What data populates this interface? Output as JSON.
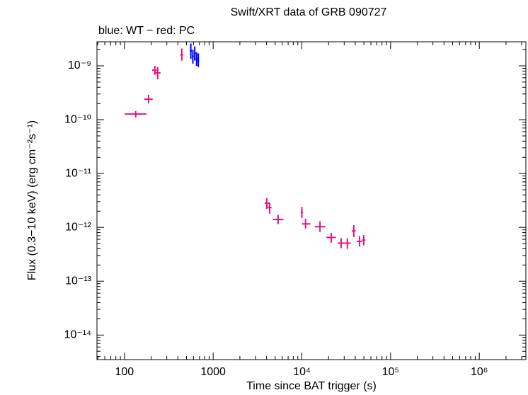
{
  "chart_data": {
    "type": "errorbar",
    "title": "Swift/XRT data of GRB 090727",
    "subtitle": "blue: WT − red: PC",
    "x_label": "Time since BAT trigger (s)",
    "y_label": "Flux (0.3−10 keV) (erg cm⁻²s⁻¹)",
    "x_scale": "log",
    "y_scale": "log",
    "xlim": [
      49,
      3350000
    ],
    "ylim": [
      3.5e-15,
      2.8e-09
    ],
    "xticks": [
      100,
      1000,
      {
        "value": 10000,
        "label": "10⁴"
      },
      {
        "value": 100000,
        "label": "10⁵"
      },
      {
        "value": 1000000,
        "label": "10⁶"
      }
    ],
    "yticks": [
      {
        "value": 1e-14,
        "label": "10⁻¹⁴"
      },
      {
        "value": 1e-13,
        "label": "10⁻¹³"
      },
      {
        "value": 1e-12,
        "label": "10⁻¹²"
      },
      {
        "value": 1e-11,
        "label": "10⁻¹¹"
      },
      {
        "value": 1e-10,
        "label": "10⁻¹⁰"
      },
      {
        "value": 1e-09,
        "label": "10⁻⁹"
      }
    ],
    "series": [
      {
        "color": "#e8127f",
        "x": [
          134,
          187,
          220,
          237,
          443,
          4020,
          4330,
          5400,
          10000,
          11000,
          16000,
          21400,
          27700,
          32600,
          38500,
          44700,
          49800
        ],
        "x_low": [
          101,
          167,
          205,
          222,
          425,
          3800,
          4100,
          4700,
          9700,
          10000,
          14000,
          18900,
          25300,
          30000,
          36500,
          41500,
          47500
        ],
        "x_high": [
          177,
          208,
          232,
          255,
          460,
          4250,
          4550,
          6200,
          10300,
          12500,
          18300,
          24100,
          30000,
          35500,
          40500,
          47500,
          52000
        ],
        "values": [
          1.27e-10,
          2.4e-10,
          8.3e-10,
          7.4e-10,
          1.6e-09,
          2.8e-12,
          2.33e-12,
          1.4e-12,
          1.9e-12,
          1.16e-12,
          1.03e-12,
          6.5e-13,
          5.1e-13,
          5.1e-13,
          8.6e-13,
          5.5e-13,
          5.8e-13
        ],
        "y_low": [
          1.1e-10,
          2e-10,
          6.8e-10,
          5.6e-10,
          1.25e-09,
          2.2e-12,
          1.8e-12,
          1.15e-12,
          1.5e-12,
          9.5e-13,
          8.2e-13,
          5.2e-13,
          4.1e-13,
          4e-13,
          6.6e-13,
          4.4e-13,
          4.6e-13
        ],
        "y_high": [
          1.45e-10,
          2.9e-10,
          1e-09,
          9.5e-10,
          2.1e-09,
          3.5e-12,
          2.9e-12,
          1.7e-12,
          2.4e-12,
          1.45e-12,
          1.3e-12,
          7.9e-13,
          6.3e-13,
          6.3e-13,
          1.1e-12,
          6.9e-13,
          7.2e-13
        ]
      },
      {
        "color": "#0000ff",
        "x": [
          560,
          590,
          620,
          650,
          680
        ],
        "x_low": [
          545,
          575,
          605,
          635,
          665
        ],
        "x_high": [
          575,
          605,
          635,
          665,
          695
        ],
        "values": [
          1.9e-09,
          1.5e-09,
          1.7e-09,
          1.35e-09,
          1.25e-09
        ],
        "y_low": [
          1.35e-09,
          1.1e-09,
          1.25e-09,
          1e-09,
          9.5e-10
        ],
        "y_high": [
          2.6e-09,
          2e-09,
          2.3e-09,
          1.8e-09,
          1.7e-09
        ]
      }
    ]
  }
}
